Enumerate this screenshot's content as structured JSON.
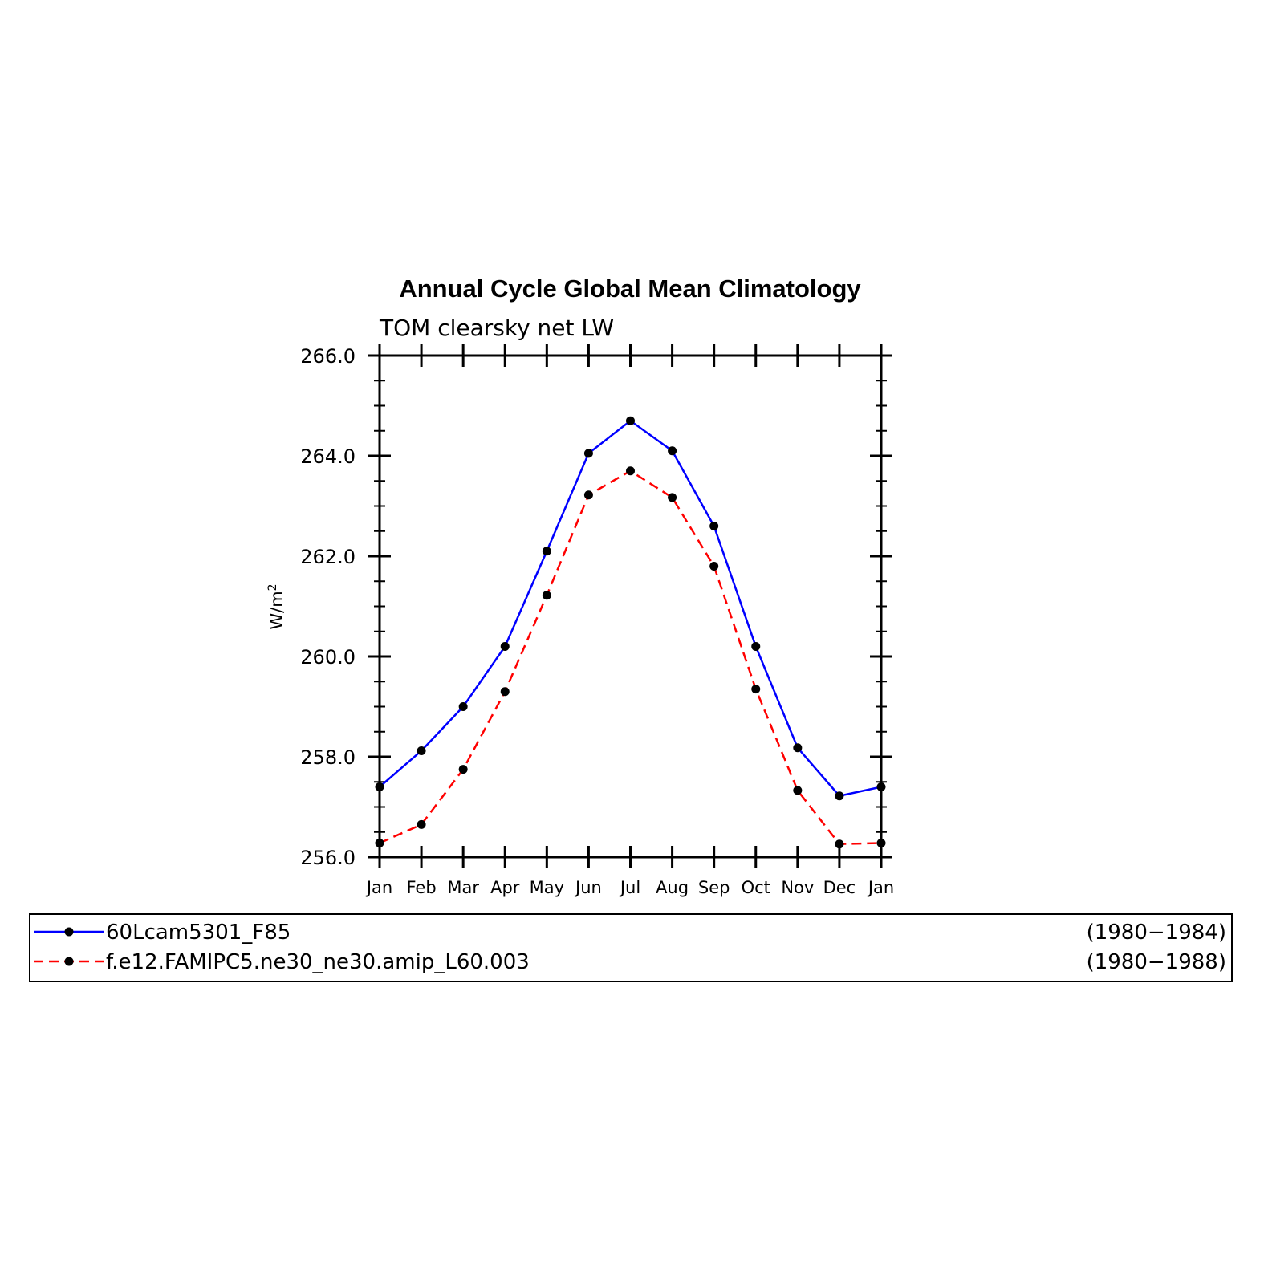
{
  "chart_data": {
    "type": "line",
    "title": "Annual Cycle Global Mean Climatology",
    "subtitle": "TOM clearsky net LW",
    "ylabel": "W/m",
    "ylabel_sup": "2",
    "ylim": [
      256.0,
      266.0
    ],
    "yticks": [
      "256.0",
      "258.0",
      "260.0",
      "262.0",
      "264.0",
      "266.0"
    ],
    "categories": [
      "Jan",
      "Feb",
      "Mar",
      "Apr",
      "May",
      "Jun",
      "Jul",
      "Aug",
      "Sep",
      "Oct",
      "Nov",
      "Dec",
      "Jan"
    ],
    "series": [
      {
        "name": "60Lcam5301_F85",
        "years": "(1980−1984)",
        "color": "#0000ff",
        "dash": "solid",
        "values": [
          257.4,
          258.12,
          259.0,
          260.2,
          262.1,
          264.05,
          264.7,
          264.1,
          262.6,
          260.2,
          258.18,
          257.22,
          257.4
        ]
      },
      {
        "name": "f.e12.FAMIPC5.ne30_ne30.amip_L60.003",
        "years": "(1980−1988)",
        "color": "#ff0000",
        "dash": "dashed",
        "values": [
          256.28,
          256.65,
          257.75,
          259.3,
          261.22,
          263.22,
          263.7,
          263.17,
          261.8,
          259.35,
          257.33,
          256.26,
          256.28
        ]
      }
    ],
    "marker_color": "#000000",
    "grid": false,
    "legend_position": "bottom"
  }
}
